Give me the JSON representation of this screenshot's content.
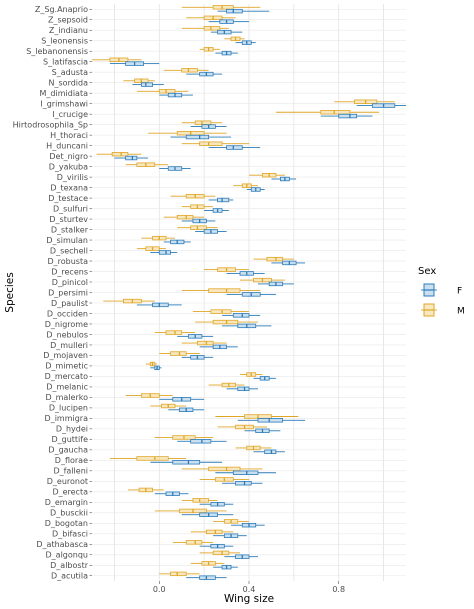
{
  "chart_data": {
    "type": "boxplot",
    "orientation": "horizontal",
    "xlabel": "Wing size",
    "ylabel": "Species",
    "xlim": [
      -0.3,
      1.1
    ],
    "xticks": [
      0.0,
      0.4,
      0.8
    ],
    "xtick_labels": [
      "0.0",
      "0.4",
      "0.8"
    ],
    "grid": true,
    "legend": {
      "title": "Sex",
      "placement": "right",
      "entries": [
        {
          "label": "F",
          "color": "#2b7bb9",
          "fill": "#9ec7e6"
        },
        {
          "label": "M",
          "color": "#e0a526",
          "fill": "#f2d68a"
        }
      ]
    },
    "species": [
      {
        "name": "Z_Sg.Anaprio",
        "F": [
          0.26,
          0.3,
          0.33,
          0.37,
          0.49
        ],
        "M": [
          0.1,
          0.24,
          0.28,
          0.33,
          0.45
        ]
      },
      {
        "name": "Z_sepsoid",
        "F": [
          0.22,
          0.27,
          0.3,
          0.33,
          0.4
        ],
        "M": [
          0.12,
          0.2,
          0.24,
          0.28,
          0.34
        ]
      },
      {
        "name": "Z_indianu",
        "F": [
          0.23,
          0.26,
          0.29,
          0.32,
          0.37
        ],
        "M": [
          0.1,
          0.2,
          0.23,
          0.27,
          0.31
        ]
      },
      {
        "name": "S_leonensis",
        "F": [
          0.34,
          0.37,
          0.39,
          0.41,
          0.43
        ],
        "M": [
          0.29,
          0.32,
          0.34,
          0.36,
          0.38
        ]
      },
      {
        "name": "S_lebanonensis",
        "F": [
          0.25,
          0.28,
          0.3,
          0.32,
          0.35
        ],
        "M": [
          0.18,
          0.2,
          0.22,
          0.24,
          0.27
        ]
      },
      {
        "name": "S_latifascia",
        "F": [
          -0.22,
          -0.15,
          -0.11,
          -0.07,
          0.0
        ],
        "M": [
          -0.3,
          -0.22,
          -0.18,
          -0.14,
          -0.08
        ]
      },
      {
        "name": "S_adusta",
        "F": [
          0.12,
          0.18,
          0.21,
          0.24,
          0.28
        ],
        "M": [
          0.02,
          0.1,
          0.13,
          0.17,
          0.22
        ]
      },
      {
        "name": "N_sordida",
        "F": [
          -0.12,
          -0.08,
          -0.06,
          -0.03,
          0.02
        ],
        "M": [
          -0.16,
          -0.11,
          -0.08,
          -0.05,
          -0.02
        ]
      },
      {
        "name": "M_dimidiata",
        "F": [
          0.0,
          0.04,
          0.07,
          0.1,
          0.15
        ],
        "M": [
          -0.1,
          0.0,
          0.03,
          0.07,
          0.13
        ]
      },
      {
        "name": "I_grimshawi",
        "F": [
          0.88,
          0.95,
          1.0,
          1.05,
          1.1
        ],
        "M": [
          0.78,
          0.87,
          0.92,
          0.97,
          1.05
        ]
      },
      {
        "name": "I_crucige",
        "F": [
          0.72,
          0.8,
          0.85,
          0.88,
          0.95
        ],
        "M": [
          0.52,
          0.72,
          0.78,
          0.85,
          0.98
        ]
      },
      {
        "name": "Hirtodrosophila_Sp",
        "F": [
          0.14,
          0.19,
          0.22,
          0.25,
          0.3
        ],
        "M": [
          0.1,
          0.16,
          0.19,
          0.23,
          0.28
        ]
      },
      {
        "name": "H_thoraci",
        "F": [
          0.05,
          0.12,
          0.18,
          0.22,
          0.32
        ],
        "M": [
          -0.05,
          0.08,
          0.14,
          0.2,
          0.3
        ]
      },
      {
        "name": "H_duncani",
        "F": [
          0.22,
          0.3,
          0.33,
          0.37,
          0.45
        ],
        "M": [
          0.1,
          0.18,
          0.22,
          0.28,
          0.4
        ]
      },
      {
        "name": "Det_nigro",
        "F": [
          -0.2,
          -0.15,
          -0.12,
          -0.1,
          -0.05
        ],
        "M": [
          -0.28,
          -0.21,
          -0.17,
          -0.14,
          -0.08
        ]
      },
      {
        "name": "D_yakuba",
        "F": [
          0.0,
          0.04,
          0.07,
          0.1,
          0.14
        ],
        "M": [
          -0.15,
          -0.1,
          -0.06,
          -0.02,
          0.04
        ]
      },
      {
        "name": "D_virilis",
        "F": [
          0.5,
          0.54,
          0.56,
          0.58,
          0.61
        ],
        "M": [
          0.4,
          0.46,
          0.49,
          0.52,
          0.56
        ]
      },
      {
        "name": "D_texana",
        "F": [
          0.39,
          0.41,
          0.43,
          0.45,
          0.47
        ],
        "M": [
          0.33,
          0.37,
          0.39,
          0.41,
          0.44
        ]
      },
      {
        "name": "D_testace",
        "F": [
          0.22,
          0.26,
          0.28,
          0.31,
          0.33
        ],
        "M": [
          0.05,
          0.12,
          0.16,
          0.2,
          0.25
        ]
      },
      {
        "name": "D_sulfuri",
        "F": [
          0.2,
          0.24,
          0.26,
          0.28,
          0.31
        ],
        "M": [
          0.1,
          0.14,
          0.17,
          0.2,
          0.24
        ]
      },
      {
        "name": "D_sturtev",
        "F": [
          0.1,
          0.15,
          0.18,
          0.21,
          0.25
        ],
        "M": [
          0.02,
          0.08,
          0.12,
          0.15,
          0.2
        ]
      },
      {
        "name": "D_stalker",
        "F": [
          0.16,
          0.2,
          0.23,
          0.26,
          0.3
        ],
        "M": [
          0.08,
          0.14,
          0.17,
          0.21,
          0.26
        ]
      },
      {
        "name": "D_simulan",
        "F": [
          0.02,
          0.05,
          0.08,
          0.11,
          0.14
        ],
        "M": [
          -0.08,
          -0.03,
          0.0,
          0.03,
          0.07
        ]
      },
      {
        "name": "D_sechell",
        "F": [
          -0.04,
          0.0,
          0.03,
          0.05,
          0.08
        ],
        "M": [
          -0.1,
          -0.06,
          -0.03,
          0.0,
          0.03
        ]
      },
      {
        "name": "D_robusta",
        "F": [
          0.5,
          0.55,
          0.58,
          0.61,
          0.65
        ],
        "M": [
          0.42,
          0.48,
          0.52,
          0.55,
          0.6
        ]
      },
      {
        "name": "D_recens",
        "F": [
          0.3,
          0.36,
          0.39,
          0.42,
          0.47
        ],
        "M": [
          0.2,
          0.26,
          0.3,
          0.34,
          0.4
        ]
      },
      {
        "name": "D_pinicol",
        "F": [
          0.44,
          0.49,
          0.52,
          0.55,
          0.6
        ],
        "M": [
          0.36,
          0.42,
          0.46,
          0.5,
          0.56
        ]
      },
      {
        "name": "D_persimi",
        "F": [
          0.3,
          0.37,
          0.41,
          0.45,
          0.52
        ],
        "M": [
          0.1,
          0.22,
          0.3,
          0.36,
          0.45
        ]
      },
      {
        "name": "D_paulist",
        "F": [
          -0.1,
          -0.03,
          0.0,
          0.04,
          0.1
        ],
        "M": [
          -0.25,
          -0.16,
          -0.12,
          -0.08,
          -0.02
        ]
      },
      {
        "name": "D_occiden",
        "F": [
          0.28,
          0.33,
          0.37,
          0.4,
          0.45
        ],
        "M": [
          0.15,
          0.23,
          0.28,
          0.32,
          0.4
        ]
      },
      {
        "name": "D_nigrome",
        "F": [
          0.28,
          0.35,
          0.39,
          0.43,
          0.5
        ],
        "M": [
          0.16,
          0.24,
          0.3,
          0.35,
          0.44
        ]
      },
      {
        "name": "D_nebulos",
        "F": [
          0.08,
          0.13,
          0.16,
          0.19,
          0.24
        ],
        "M": [
          -0.02,
          0.03,
          0.07,
          0.1,
          0.16
        ]
      },
      {
        "name": "D_mulleri",
        "F": [
          0.18,
          0.24,
          0.27,
          0.3,
          0.35
        ],
        "M": [
          0.1,
          0.17,
          0.21,
          0.24,
          0.3
        ]
      },
      {
        "name": "D_mojaven",
        "F": [
          0.1,
          0.14,
          0.17,
          0.2,
          0.24
        ],
        "M": [
          0.0,
          0.05,
          0.09,
          0.12,
          0.18
        ]
      },
      {
        "name": "D_mimetic",
        "F": [
          -0.04,
          -0.02,
          -0.01,
          0.0,
          0.01
        ],
        "M": [
          -0.06,
          -0.04,
          -0.03,
          -0.02,
          -0.01
        ]
      },
      {
        "name": "D_mercato",
        "F": [
          0.42,
          0.45,
          0.47,
          0.49,
          0.52
        ],
        "M": [
          0.36,
          0.39,
          0.41,
          0.43,
          0.46
        ]
      },
      {
        "name": "D_melanic",
        "F": [
          0.3,
          0.35,
          0.38,
          0.4,
          0.44
        ],
        "M": [
          0.22,
          0.28,
          0.31,
          0.34,
          0.38
        ]
      },
      {
        "name": "D_malerko",
        "F": [
          0.0,
          0.06,
          0.1,
          0.14,
          0.2
        ],
        "M": [
          -0.15,
          -0.08,
          -0.04,
          0.0,
          0.06
        ]
      },
      {
        "name": "D_lucipen",
        "F": [
          0.04,
          0.09,
          0.12,
          0.15,
          0.2
        ],
        "M": [
          -0.04,
          0.01,
          0.04,
          0.07,
          0.12
        ]
      },
      {
        "name": "D_immigra",
        "F": [
          0.35,
          0.44,
          0.49,
          0.55,
          0.65
        ],
        "M": [
          0.25,
          0.38,
          0.44,
          0.5,
          0.62
        ]
      },
      {
        "name": "D_hydei",
        "F": [
          0.38,
          0.43,
          0.46,
          0.49,
          0.54
        ],
        "M": [
          0.26,
          0.34,
          0.38,
          0.42,
          0.48
        ]
      },
      {
        "name": "D_guttife",
        "F": [
          0.08,
          0.14,
          0.19,
          0.23,
          0.3
        ],
        "M": [
          -0.02,
          0.06,
          0.11,
          0.16,
          0.24
        ]
      },
      {
        "name": "D_gaucha",
        "F": [
          0.42,
          0.47,
          0.5,
          0.52,
          0.56
        ],
        "M": [
          0.34,
          0.39,
          0.42,
          0.45,
          0.5
        ]
      },
      {
        "name": "D_florae",
        "F": [
          -0.04,
          0.06,
          0.13,
          0.18,
          0.28
        ],
        "M": [
          -0.22,
          -0.1,
          -0.02,
          0.04,
          0.12
        ]
      },
      {
        "name": "D_falleni",
        "F": [
          0.25,
          0.33,
          0.39,
          0.44,
          0.52
        ],
        "M": [
          0.1,
          0.22,
          0.3,
          0.36,
          0.46
        ]
      },
      {
        "name": "D_euronot",
        "F": [
          0.28,
          0.34,
          0.38,
          0.41,
          0.46
        ],
        "M": [
          0.18,
          0.25,
          0.29,
          0.33,
          0.4
        ]
      },
      {
        "name": "D_erecta",
        "F": [
          -0.02,
          0.03,
          0.06,
          0.09,
          0.13
        ],
        "M": [
          -0.14,
          -0.09,
          -0.06,
          -0.03,
          0.02
        ]
      },
      {
        "name": "D_emargin",
        "F": [
          0.18,
          0.23,
          0.26,
          0.29,
          0.33
        ],
        "M": [
          0.1,
          0.15,
          0.18,
          0.22,
          0.26
        ]
      },
      {
        "name": "D_busckii",
        "F": [
          0.1,
          0.18,
          0.22,
          0.26,
          0.33
        ],
        "M": [
          -0.02,
          0.09,
          0.15,
          0.21,
          0.3
        ]
      },
      {
        "name": "D_bogotan",
        "F": [
          0.32,
          0.37,
          0.4,
          0.43,
          0.47
        ],
        "M": [
          0.24,
          0.29,
          0.32,
          0.35,
          0.4
        ]
      },
      {
        "name": "D_bifasci",
        "F": [
          0.24,
          0.29,
          0.32,
          0.35,
          0.39
        ],
        "M": [
          0.14,
          0.21,
          0.25,
          0.28,
          0.33
        ]
      },
      {
        "name": "D_athabasca",
        "F": [
          0.18,
          0.23,
          0.26,
          0.29,
          0.33
        ],
        "M": [
          0.06,
          0.12,
          0.16,
          0.19,
          0.24
        ]
      },
      {
        "name": "D_algonqu",
        "F": [
          0.29,
          0.34,
          0.37,
          0.4,
          0.44
        ],
        "M": [
          0.18,
          0.24,
          0.28,
          0.31,
          0.36
        ]
      },
      {
        "name": "D_albostr",
        "F": [
          0.24,
          0.28,
          0.3,
          0.32,
          0.35
        ],
        "M": [
          0.14,
          0.19,
          0.22,
          0.25,
          0.29
        ]
      },
      {
        "name": "D_acutila",
        "F": [
          0.12,
          0.18,
          0.21,
          0.25,
          0.3
        ],
        "M": [
          0.0,
          0.05,
          0.08,
          0.12,
          0.18
        ]
      }
    ]
  }
}
